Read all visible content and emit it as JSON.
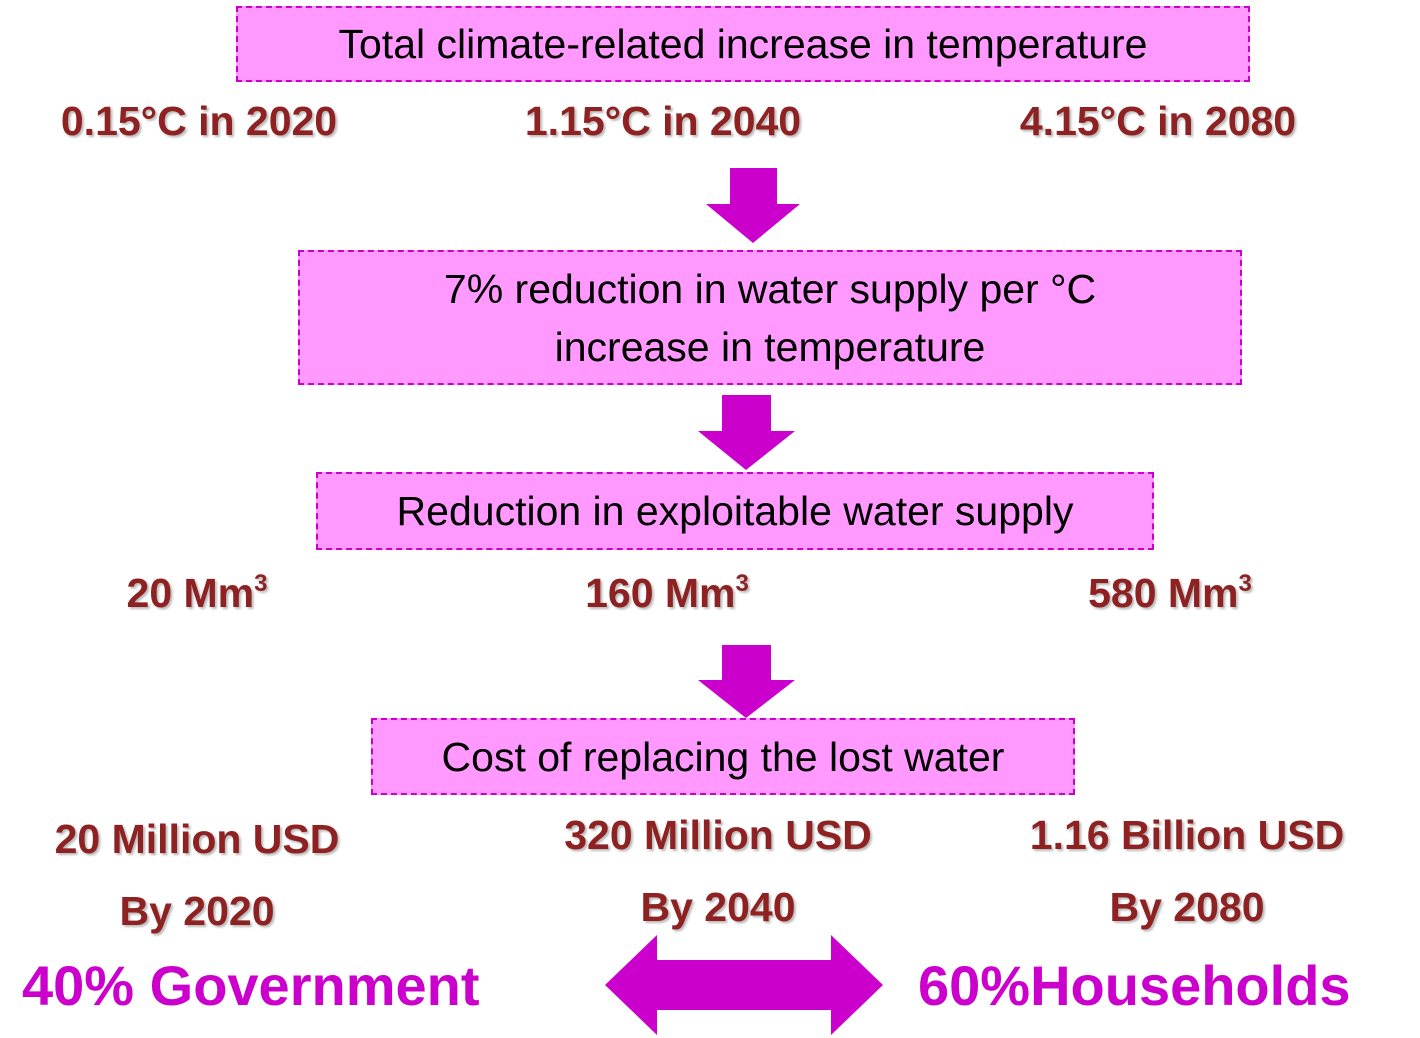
{
  "boxes": [
    "Total climate-related increase in temperature",
    [
      "7% reduction in water supply per °C",
      "increase in temperature"
    ],
    "Reduction in exploitable water supply",
    "Cost of replacing the lost water"
  ],
  "temperatures": [
    "0.15°C in 2020",
    "1.15°C in 2040",
    "4.15°C in 2080"
  ],
  "volumes": [
    {
      "text": "20 Mm",
      "sup": "3"
    },
    {
      "text": "160 Mm",
      "sup": "3"
    },
    {
      "text": "580 Mm",
      "sup": "3"
    }
  ],
  "costs": [
    {
      "amount": "20 Million USD",
      "by": "By 2020"
    },
    {
      "amount": "320 Million USD",
      "by": "By 2040"
    },
    {
      "amount": "1.16 Billion USD",
      "by": "By 2080"
    }
  ],
  "shares": [
    "40% Government",
    "60%Households"
  ]
}
